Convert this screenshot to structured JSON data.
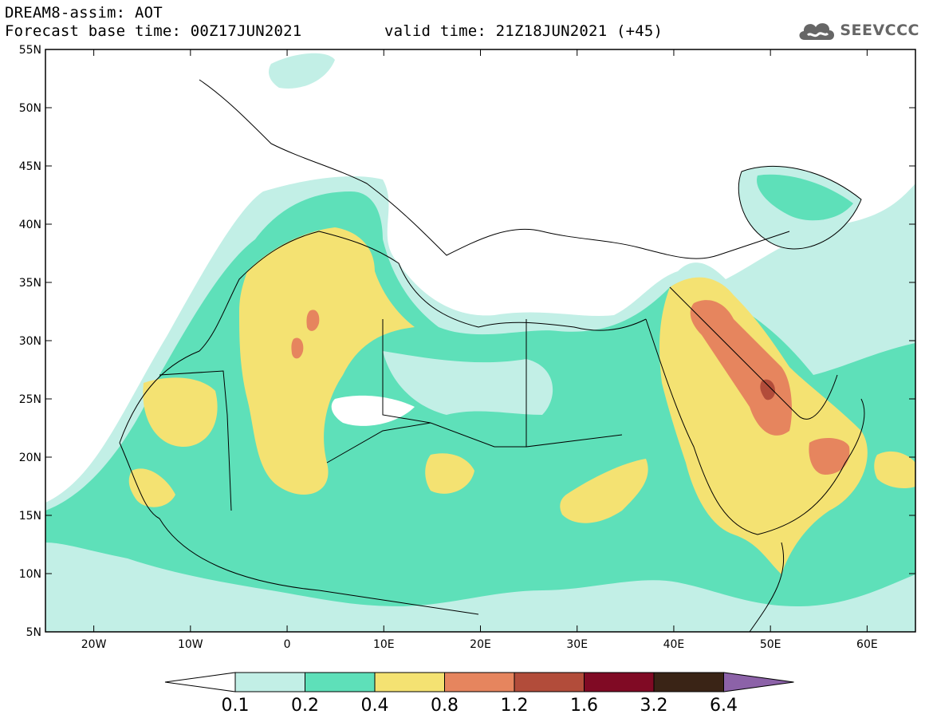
{
  "header": {
    "line1": "DREAM8-assim: AOT",
    "line2": "Forecast base time: 00Z17JUN2021",
    "valid": "valid time: 21Z18JUN2021 (+45)"
  },
  "logo": {
    "text": "SEEVCCC",
    "icon": "cloud-icon",
    "color": "#666666"
  },
  "map": {
    "lon_range": [
      -25,
      65
    ],
    "lat_range": [
      5,
      55
    ],
    "lat_ticks": [
      "55N",
      "50N",
      "45N",
      "40N",
      "35N",
      "30N",
      "25N",
      "20N",
      "15N",
      "10N",
      "5N"
    ],
    "lon_ticks": [
      "20W",
      "10W",
      "0",
      "10E",
      "20E",
      "30E",
      "40E",
      "50E",
      "60E"
    ]
  },
  "colorbar": {
    "labels": [
      "0.1",
      "0.2",
      "0.4",
      "0.8",
      "1.2",
      "1.6",
      "3.2",
      "6.4"
    ],
    "colors": [
      "#ffffff",
      "#c2efe6",
      "#5ee0b9",
      "#f4e272",
      "#e6855e",
      "#b24c3a",
      "#800a24",
      "#3a2416",
      "#8c62a8"
    ]
  }
}
